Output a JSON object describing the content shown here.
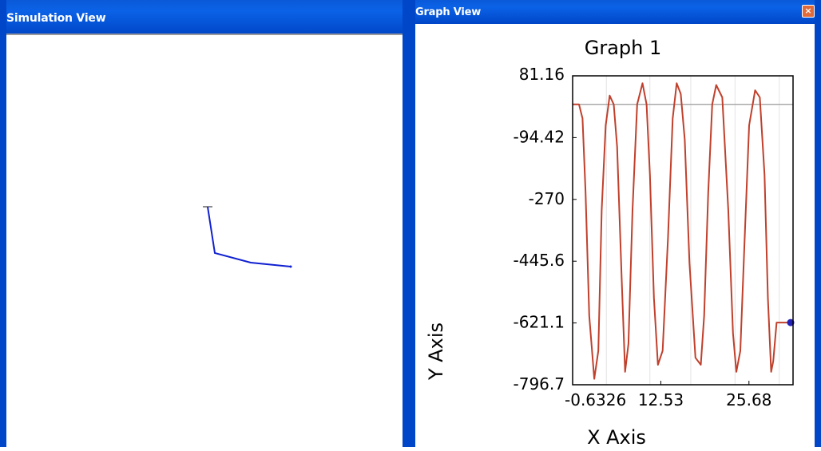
{
  "simulation_view": {
    "title": "Simulation View",
    "pendulum": {
      "color": "#1020d0",
      "links": [
        "upper link",
        "middle link",
        "lower link"
      ]
    }
  },
  "graph_view": {
    "title": "Graph View",
    "close_symbol": "×"
  },
  "chart_data": {
    "type": "line",
    "title": "Graph 1",
    "xlabel": "X Axis",
    "ylabel": "Y Axis",
    "xlim": [
      -0.6326,
      32.26
    ],
    "ylim": [
      -796.7,
      81.16
    ],
    "x_ticks": [
      -0.6326,
      12.53,
      25.68
    ],
    "y_ticks": [
      81.16,
      -94.42,
      -270,
      -445.6,
      -621.1,
      -796.7
    ],
    "x_tick_labels": [
      "-0.6326",
      "12.53",
      "25.68"
    ],
    "y_tick_labels": [
      "81.16",
      "-94.42",
      "-270",
      "-445.6",
      "-621.1",
      "-796.7"
    ],
    "reference_line_y": 0,
    "series": [
      {
        "color": "#c0402c",
        "marker_color": "#2222bb",
        "x": [
          -0.6326,
          0.32,
          0.85,
          1.3,
          1.85,
          2.6,
          3.2,
          3.7,
          4.3,
          4.9,
          5.5,
          6.0,
          6.7,
          7.2,
          7.7,
          8.3,
          9.0,
          9.8,
          10.4,
          10.9,
          11.5,
          12.1,
          12.8,
          13.6,
          14.3,
          14.9,
          15.5,
          16.1,
          16.8,
          17.7,
          18.5,
          19.0,
          19.6,
          20.2,
          20.8,
          21.7,
          22.6,
          23.3,
          23.8,
          24.4,
          25.0,
          25.7,
          26.6,
          27.3,
          28.0,
          28.5,
          29.0,
          29.3,
          29.8,
          30.5,
          31.2,
          32.26
        ],
        "y": [
          0,
          0,
          -40,
          -250,
          -600,
          -780,
          -700,
          -300,
          -60,
          25,
          0,
          -120,
          -500,
          -760,
          -680,
          -300,
          0,
          60,
          0,
          -200,
          -550,
          -740,
          -700,
          -380,
          -40,
          60,
          30,
          -100,
          -450,
          -720,
          -740,
          -600,
          -250,
          0,
          55,
          20,
          -300,
          -650,
          -760,
          -700,
          -400,
          -60,
          40,
          20,
          -200,
          -550,
          -760,
          -730,
          -620,
          -620,
          -620,
          -620
        ]
      }
    ]
  }
}
